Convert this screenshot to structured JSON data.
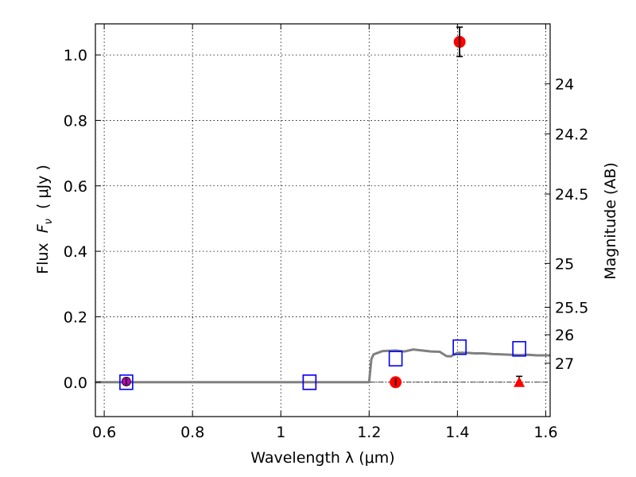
{
  "chart_data": {
    "type": "scatter",
    "xlabel": "Wavelength  λ (μm)",
    "ylabel": "Flux  F_ν  ( μJy )",
    "ylabel_parts": {
      "prefix": "Flux  ",
      "symbol": "F",
      "subscript": "ν",
      "unit": "  ( μJy )"
    },
    "y2label": "Magnitude (AB)",
    "xlim": [
      0.58,
      1.61
    ],
    "ylim": [
      -0.105,
      1.095
    ],
    "grid": true,
    "xticks": [
      0.6,
      0.8,
      1.0,
      1.2,
      1.4,
      1.6
    ],
    "xtick_labels": [
      "0.6",
      "0.8",
      "1",
      "1.2",
      "1.4",
      "1.6"
    ],
    "yticks": [
      0.0,
      0.2,
      0.4,
      0.6,
      0.8,
      1.0
    ],
    "ytick_labels": [
      "0.0",
      "0.2",
      "0.4",
      "0.6",
      "0.8",
      "1.0"
    ],
    "y2ticks": [
      {
        "label": "24",
        "flux": 0.912
      },
      {
        "label": "24.2",
        "flux": 0.759
      },
      {
        "label": "24.5",
        "flux": 0.575
      },
      {
        "label": "25",
        "flux": 0.363
      },
      {
        "label": "25.5",
        "flux": 0.229
      },
      {
        "label": "26",
        "flux": 0.145
      },
      {
        "label": "27",
        "flux": 0.058
      }
    ],
    "reference_line": {
      "y": 0.0,
      "style": "dash-dot"
    },
    "series": [
      {
        "marker": "circle",
        "color": "#ff0000",
        "points": [
          {
            "x": 1.405,
            "y": 1.04,
            "err": 0.045
          },
          {
            "x": 1.26,
            "y": 0.0,
            "err": 0.012
          }
        ]
      },
      {
        "marker": "triangle",
        "color": "#ff0000",
        "points": [
          {
            "x": 1.54,
            "y": 0.0,
            "err": 0.018
          }
        ]
      },
      {
        "marker": "circle",
        "color": "#bf00bf",
        "points": [
          {
            "x": 0.65,
            "y": 0.002,
            "err": 0.01
          }
        ]
      },
      {
        "marker": "open-square",
        "color": "#ff0000",
        "points": [
          {
            "x": 1.065,
            "y": 0.0
          }
        ]
      },
      {
        "marker": "open-square",
        "color": "#0000ff",
        "points": [
          {
            "x": 0.65,
            "y": 0.0
          },
          {
            "x": 1.065,
            "y": 0.0
          },
          {
            "x": 1.26,
            "y": 0.072
          },
          {
            "x": 1.405,
            "y": 0.107
          },
          {
            "x": 1.54,
            "y": 0.102
          }
        ]
      },
      {
        "marker": "line",
        "color": "#808080",
        "x": [
          0.58,
          1.19,
          1.2,
          1.205,
          1.21,
          1.23,
          1.26,
          1.28,
          1.3,
          1.32,
          1.34,
          1.36,
          1.375,
          1.385,
          1.4,
          1.42,
          1.44,
          1.46,
          1.48,
          1.5,
          1.52,
          1.54,
          1.56,
          1.58,
          1.61
        ],
        "y": [
          0.0,
          0.0,
          0.0,
          0.07,
          0.085,
          0.095,
          0.097,
          0.094,
          0.1,
          0.097,
          0.094,
          0.093,
          0.08,
          0.079,
          0.09,
          0.09,
          0.088,
          0.088,
          0.086,
          0.085,
          0.084,
          0.083,
          0.084,
          0.082,
          0.082
        ]
      }
    ]
  }
}
